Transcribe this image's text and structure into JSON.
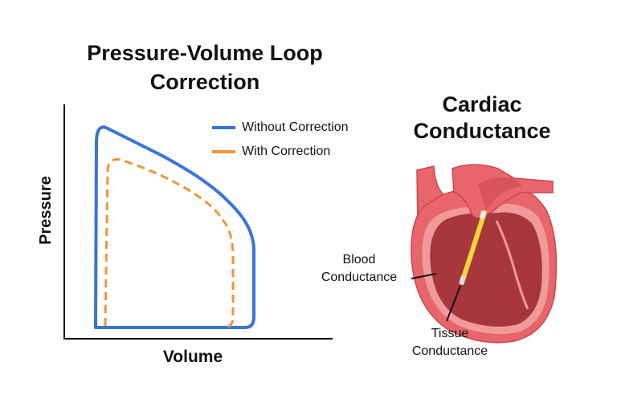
{
  "plot": {
    "title_line1": "Pressure-Volume Loop",
    "title_line2": "Correction",
    "xlabel": "Volume",
    "ylabel": "Pressure",
    "legend": [
      {
        "label": "Without Correction",
        "color": "#3b74d6",
        "style": "solid"
      },
      {
        "label": "With Correction",
        "color": "#f0953a",
        "style": "dashed"
      }
    ]
  },
  "heart": {
    "title_line1": "Cardiac",
    "title_line2": "Conductance",
    "label_blood_line1": "Blood",
    "label_blood_line2": "Conductance",
    "label_tissue_line1": "Tissue",
    "label_tissue_line2": "Conductance",
    "colors": {
      "outer": "#e8666b",
      "wall": "#f19a9c",
      "chamber": "#a8373d",
      "catheter": "#f5d63a"
    }
  }
}
